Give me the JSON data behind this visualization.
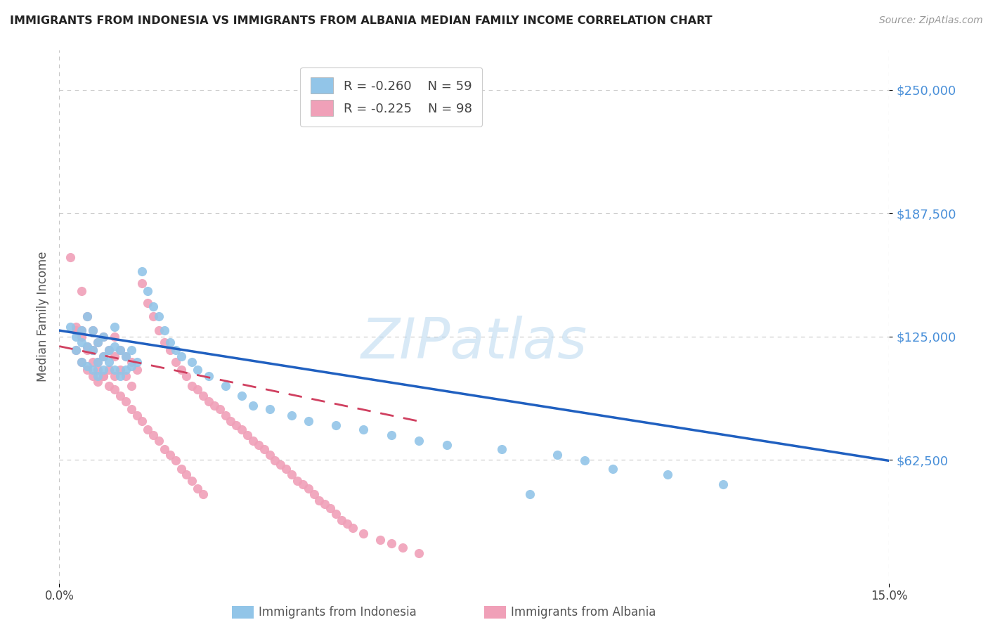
{
  "title": "IMMIGRANTS FROM INDONESIA VS IMMIGRANTS FROM ALBANIA MEDIAN FAMILY INCOME CORRELATION CHART",
  "source": "Source: ZipAtlas.com",
  "ylabel": "Median Family Income",
  "xlim": [
    0.0,
    0.15
  ],
  "ylim": [
    0,
    270000
  ],
  "yticks": [
    62500,
    125000,
    187500,
    250000
  ],
  "ytick_labels": [
    "$62,500",
    "$125,000",
    "$187,500",
    "$250,000"
  ],
  "xtick_labels": [
    "0.0%",
    "15.0%"
  ],
  "grid_color": "#c8c8c8",
  "background_color": "#ffffff",
  "legend_r1": "R = -0.260",
  "legend_n1": "N = 59",
  "legend_r2": "R = -0.225",
  "legend_n2": "N = 98",
  "indonesia_color": "#92c5e8",
  "albania_color": "#f0a0b8",
  "indonesia_line_color": "#2060c0",
  "albania_line_color": "#d04060",
  "title_color": "#222222",
  "axis_label_color": "#555555",
  "ytick_color": "#4a90d9",
  "source_color": "#999999",
  "indonesia_x": [
    0.002,
    0.003,
    0.003,
    0.004,
    0.004,
    0.004,
    0.005,
    0.005,
    0.005,
    0.006,
    0.006,
    0.006,
    0.007,
    0.007,
    0.007,
    0.008,
    0.008,
    0.008,
    0.009,
    0.009,
    0.01,
    0.01,
    0.01,
    0.011,
    0.011,
    0.012,
    0.012,
    0.013,
    0.013,
    0.014,
    0.015,
    0.016,
    0.017,
    0.018,
    0.019,
    0.02,
    0.021,
    0.022,
    0.024,
    0.025,
    0.027,
    0.03,
    0.033,
    0.035,
    0.038,
    0.042,
    0.045,
    0.05,
    0.055,
    0.06,
    0.065,
    0.07,
    0.08,
    0.09,
    0.095,
    0.1,
    0.11,
    0.12,
    0.085
  ],
  "indonesia_y": [
    130000,
    125000,
    118000,
    128000,
    122000,
    112000,
    135000,
    120000,
    110000,
    128000,
    118000,
    108000,
    122000,
    112000,
    105000,
    125000,
    115000,
    108000,
    118000,
    112000,
    130000,
    120000,
    108000,
    118000,
    105000,
    115000,
    108000,
    118000,
    110000,
    112000,
    158000,
    148000,
    140000,
    135000,
    128000,
    122000,
    118000,
    115000,
    112000,
    108000,
    105000,
    100000,
    95000,
    90000,
    88000,
    85000,
    82000,
    80000,
    78000,
    75000,
    72000,
    70000,
    68000,
    65000,
    62000,
    58000,
    55000,
    50000,
    45000
  ],
  "albania_x": [
    0.002,
    0.003,
    0.003,
    0.004,
    0.004,
    0.004,
    0.005,
    0.005,
    0.005,
    0.006,
    0.006,
    0.006,
    0.007,
    0.007,
    0.007,
    0.008,
    0.008,
    0.008,
    0.009,
    0.009,
    0.01,
    0.01,
    0.01,
    0.011,
    0.011,
    0.012,
    0.012,
    0.013,
    0.013,
    0.014,
    0.015,
    0.016,
    0.017,
    0.018,
    0.019,
    0.02,
    0.021,
    0.022,
    0.023,
    0.024,
    0.025,
    0.026,
    0.027,
    0.028,
    0.029,
    0.03,
    0.031,
    0.032,
    0.033,
    0.034,
    0.035,
    0.036,
    0.037,
    0.038,
    0.039,
    0.04,
    0.041,
    0.042,
    0.043,
    0.044,
    0.045,
    0.046,
    0.047,
    0.048,
    0.049,
    0.05,
    0.051,
    0.052,
    0.053,
    0.055,
    0.058,
    0.06,
    0.062,
    0.065,
    0.003,
    0.004,
    0.005,
    0.006,
    0.007,
    0.008,
    0.009,
    0.01,
    0.011,
    0.012,
    0.013,
    0.014,
    0.015,
    0.016,
    0.017,
    0.018,
    0.019,
    0.02,
    0.021,
    0.022,
    0.023,
    0.024,
    0.025,
    0.026
  ],
  "albania_y": [
    165000,
    128000,
    118000,
    148000,
    128000,
    112000,
    135000,
    120000,
    108000,
    128000,
    118000,
    105000,
    122000,
    112000,
    102000,
    125000,
    115000,
    105000,
    118000,
    108000,
    125000,
    115000,
    105000,
    118000,
    108000,
    115000,
    105000,
    112000,
    100000,
    108000,
    152000,
    142000,
    135000,
    128000,
    122000,
    118000,
    112000,
    108000,
    105000,
    100000,
    98000,
    95000,
    92000,
    90000,
    88000,
    85000,
    82000,
    80000,
    78000,
    75000,
    72000,
    70000,
    68000,
    65000,
    62000,
    60000,
    58000,
    55000,
    52000,
    50000,
    48000,
    45000,
    42000,
    40000,
    38000,
    35000,
    32000,
    30000,
    28000,
    25000,
    22000,
    20000,
    18000,
    15000,
    130000,
    125000,
    118000,
    112000,
    108000,
    105000,
    100000,
    98000,
    95000,
    92000,
    88000,
    85000,
    82000,
    78000,
    75000,
    72000,
    68000,
    65000,
    62000,
    58000,
    55000,
    52000,
    48000,
    45000
  ],
  "indonesia_line_x": [
    0.0,
    0.15
  ],
  "indonesia_line_y": [
    128000,
    62000
  ],
  "albania_line_x": [
    0.0,
    0.065
  ],
  "albania_line_y": [
    120000,
    82000
  ]
}
